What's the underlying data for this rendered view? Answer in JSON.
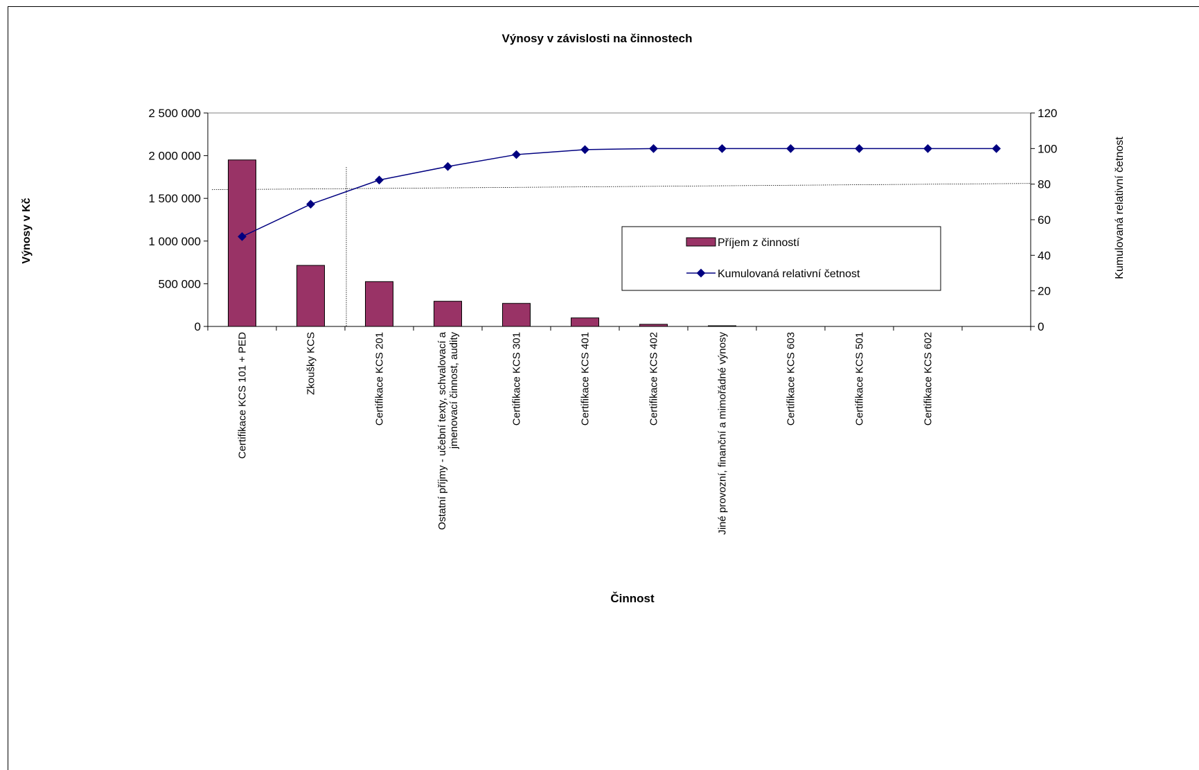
{
  "chart_data": {
    "type": "bar",
    "title": "Výnosy v závislosti na činnostech",
    "xlabel": "Činnost",
    "ylabel": "Výnosy v Kč",
    "y2label": "Kumulovaná relativní četnost",
    "ylim": [
      0,
      2500000
    ],
    "y2lim": [
      0,
      120
    ],
    "yticks": [
      "0",
      "500 000",
      "1 000 000",
      "1 500 000",
      "2 000 000",
      "2 500 000"
    ],
    "y2ticks": [
      "0",
      "20",
      "40",
      "60",
      "80",
      "100",
      "120"
    ],
    "categories": [
      "Certifikace KCS 101 + PED",
      "Zkoušky KCS",
      "Certifikace KCS 201",
      "Ostatní příjmy - učební texty, schvalovací a jmenovací činnost, audity",
      "Certifikace KCS 301",
      "Certifikace KCS 401",
      "Certifikace KCS 402",
      "Jiné provozní, finanční a mimořádné výnosy",
      "Certifikace KCS 603",
      "Certifikace KCS 501",
      "Certifikace KCS 602",
      ""
    ],
    "series": [
      {
        "name": "Příjem z činností",
        "type": "bar",
        "color": "#993366",
        "values": [
          1950000,
          715000,
          525000,
          295000,
          270000,
          100000,
          25000,
          8000,
          0,
          0,
          0,
          0
        ]
      },
      {
        "name": "Kumulovaná relativní četnost",
        "type": "line",
        "axis": "right",
        "color": "#000080",
        "values": [
          50.5,
          68.7,
          82.3,
          89.9,
          96.6,
          99.4,
          100,
          100,
          100,
          100,
          100,
          100
        ]
      }
    ],
    "reference_lines": {
      "y2_value": 80,
      "x_between_categories": [
        1,
        2
      ]
    },
    "legend": "inside-right",
    "grid": false
  }
}
